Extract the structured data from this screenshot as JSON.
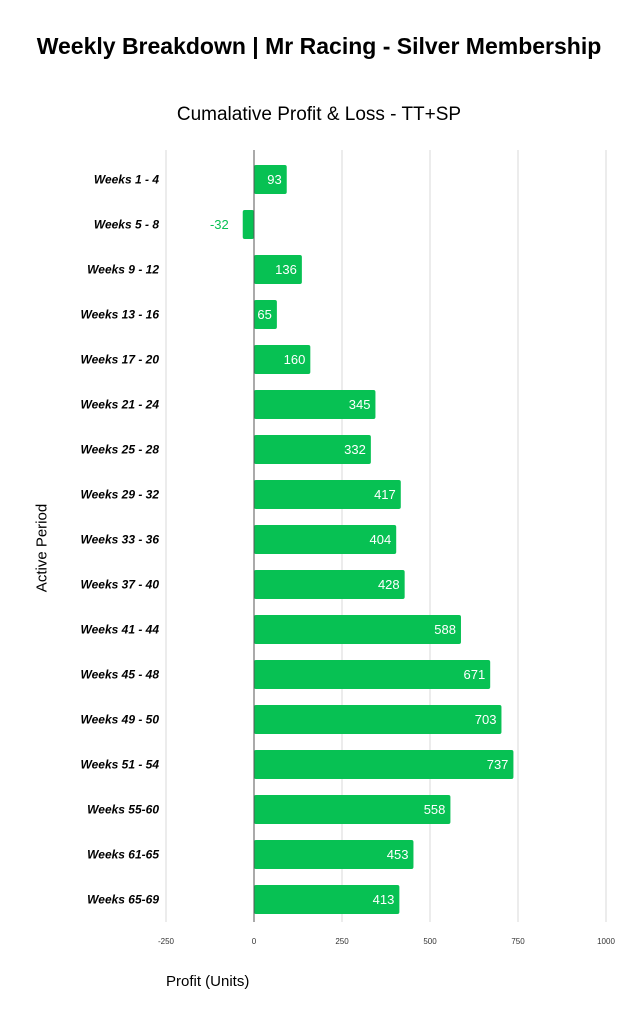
{
  "chart_data": {
    "type": "bar",
    "orientation": "horizontal",
    "title": "Weekly Breakdown | Mr Racing - Silver Membership",
    "subtitle": "Cumalative Profit & Loss - TT+SP",
    "xlabel": "Profit (Units)",
    "ylabel": "Active Period",
    "xlim": [
      -250,
      1000
    ],
    "xticks": [
      -250,
      0,
      250,
      500,
      750,
      1000
    ],
    "grid": true,
    "categories": [
      "Weeks 1 - 4",
      "Weeks 5 - 8",
      "Weeks 9 - 12",
      "Weeks 13 - 16",
      "Weeks 17 - 20",
      "Weeks 21 - 24",
      "Weeks 25 - 28",
      "Weeks 29 - 32",
      "Weeks 33 - 36",
      "Weeks 37 - 40",
      "Weeks 41 - 44",
      "Weeks 45 - 48",
      "Weeks 49 - 50",
      "Weeks 51 - 54",
      "Weeks 55-60",
      "Weeks 61-65",
      "Weeks 65-69"
    ],
    "values": [
      93,
      -32,
      136,
      65,
      160,
      345,
      332,
      417,
      404,
      428,
      588,
      671,
      703,
      737,
      558,
      453,
      413
    ],
    "bar_color": "#07c153",
    "label_color_inside": "#ffffff",
    "label_color_outside": "#07c153"
  }
}
